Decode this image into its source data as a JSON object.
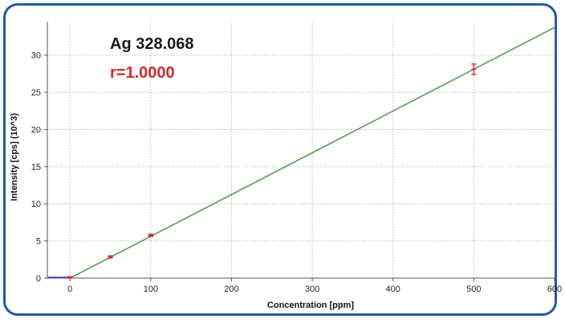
{
  "chart_data": {
    "type": "scatter",
    "xlabel": "Concentration [ppm]",
    "ylabel": "Intensity [cps] (10^3)",
    "xlim": [
      -28,
      600
    ],
    "ylim": [
      0,
      34.5
    ],
    "xticks": [
      0,
      100,
      200,
      300,
      400,
      500,
      600
    ],
    "yticks": [
      0,
      5,
      10,
      15,
      20,
      25,
      30
    ],
    "grid": true,
    "annotations": {
      "title": "Ag 328.068",
      "r": "r=1.0000"
    },
    "points": [
      {
        "x": 0,
        "y": 0.1,
        "err": 0.1
      },
      {
        "x": 50,
        "y": 2.85,
        "err": 0.15
      },
      {
        "x": 100,
        "y": 5.75,
        "err": 0.15
      },
      {
        "x": 500,
        "y": 28.1,
        "err": 0.7
      }
    ],
    "fit_line": {
      "slope": 0.0562,
      "intercept": 0.0
    },
    "baseline": {
      "x": [
        -28,
        0
      ],
      "y": 0.1
    },
    "colors": {
      "points": "#d42a2a",
      "fit": "#5a9a5a",
      "baseline": "#4a4ad0",
      "grid": "#b5b5b5",
      "border": "#1f5c99"
    }
  }
}
